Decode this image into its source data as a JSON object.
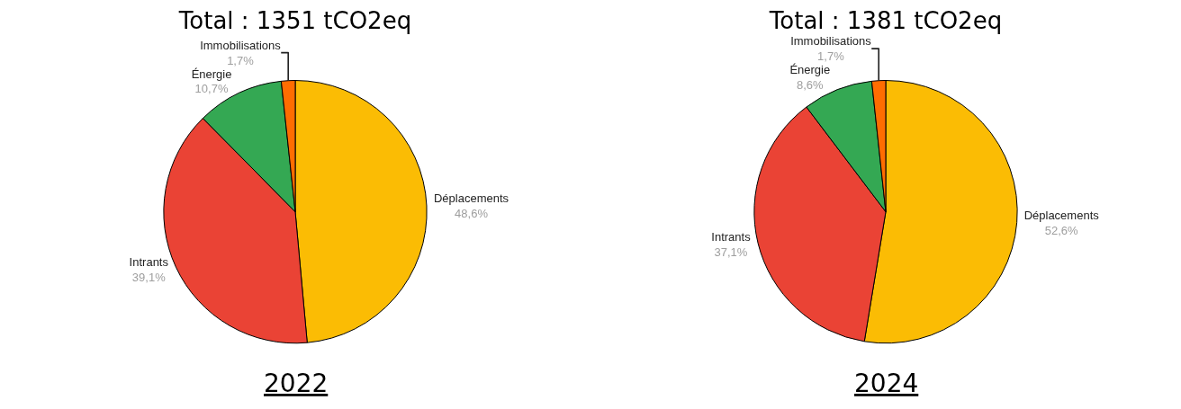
{
  "chart_data": [
    {
      "type": "pie",
      "title": "Total : 1351 tCO2eq",
      "annotations": [
        "2022"
      ],
      "categories": [
        "Déplacements",
        "Intrants",
        "Énergie",
        "Immobilisations"
      ],
      "values": [
        48.6,
        39.1,
        10.7,
        1.7
      ],
      "value_labels": [
        "48,6%",
        "39,1%",
        "10,7%",
        "1,7%"
      ],
      "colors": [
        "#fbbc04",
        "#ea4335",
        "#34a853",
        "#ff6d01"
      ],
      "legend": false
    },
    {
      "type": "pie",
      "title": "Total : 1381 tCO2eq",
      "annotations": [
        "2024"
      ],
      "categories": [
        "Déplacements",
        "Intrants",
        "Énergie",
        "Immobilisations"
      ],
      "values": [
        52.6,
        37.1,
        8.6,
        1.7
      ],
      "value_labels": [
        "52,6%",
        "37,1%",
        "8,6%",
        "1,7%"
      ],
      "colors": [
        "#fbbc04",
        "#ea4335",
        "#34a853",
        "#ff6d01"
      ],
      "legend": false
    }
  ]
}
